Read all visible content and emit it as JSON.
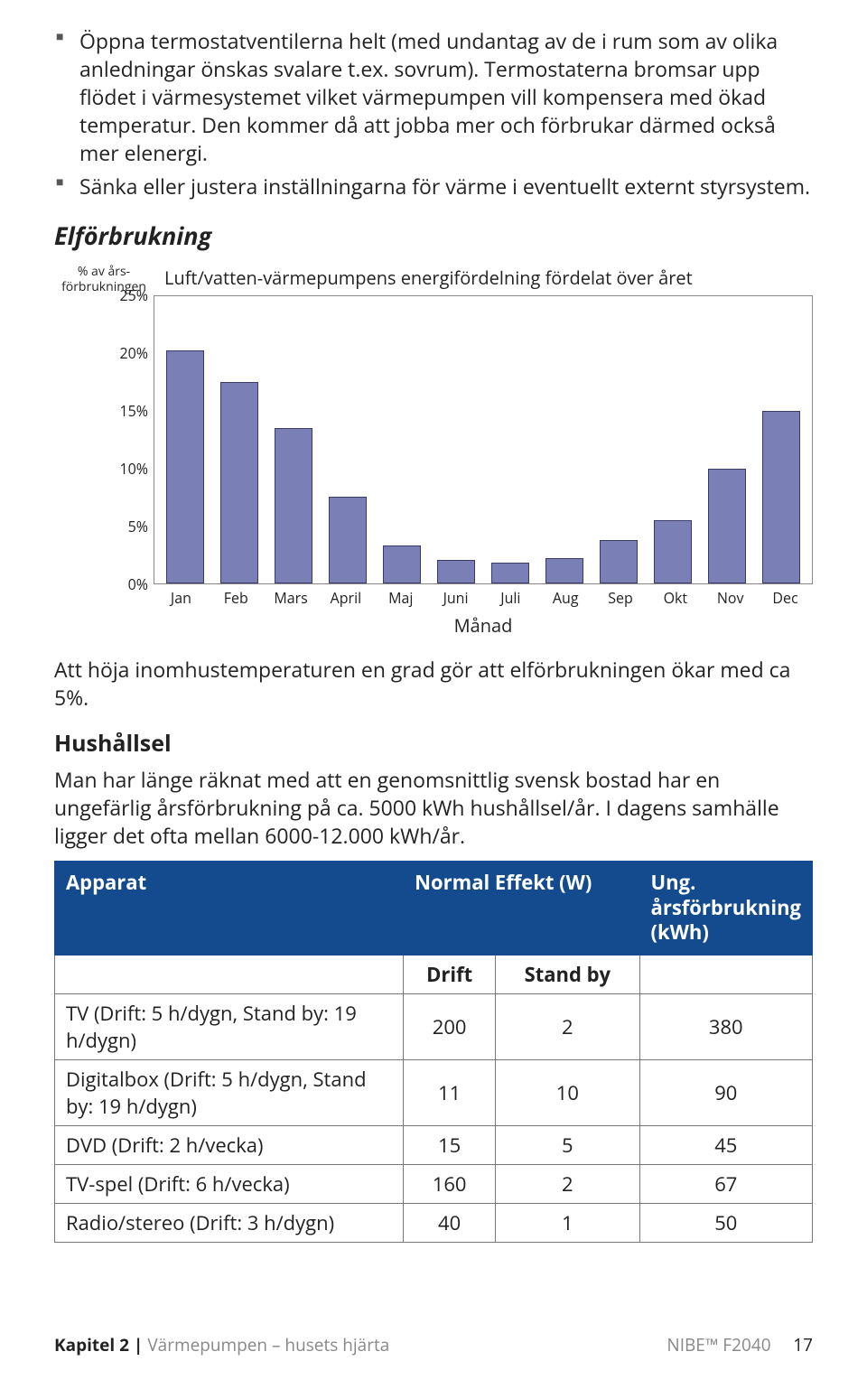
{
  "bullets": [
    "Öppna termostatventilerna helt (med undantag av de i rum som av olika anledningar önskas svalare t.ex. sovrum). Termostaterna bromsar upp flödet i värmesystemet vilket värmepumpen vill kompensera med ökad temperatur. Den kommer då att jobba mer och förbrukar därmed också mer elenergi.",
    "Sänka eller justera inställningarna för värme i eventuellt externt styrsystem."
  ],
  "section_title": "Elförbrukning",
  "chart": {
    "type": "bar",
    "y_axis_label": "% av års-\nförbrukningen",
    "title": "Luft/vatten-värmepumpens energifördelning fördelat över året",
    "categories": [
      "Jan",
      "Feb",
      "Mars",
      "April",
      "Maj",
      "Juni",
      "Juli",
      "Aug",
      "Sep",
      "Okt",
      "Nov",
      "Dec"
    ],
    "values": [
      20.3,
      17.5,
      13.5,
      7.5,
      3.3,
      2.0,
      1.8,
      2.2,
      3.8,
      5.5,
      10.0,
      15.0
    ],
    "ylim": [
      0,
      25
    ],
    "yticks": [
      "25%",
      "20%",
      "15%",
      "10%",
      "5%",
      "0%"
    ],
    "ytick_values": [
      25,
      20,
      15,
      10,
      5,
      0
    ],
    "bar_color": "#7a7fb5",
    "bar_border": "#3a3a6a",
    "x_label": "Månad",
    "plot_border_color": "#888888",
    "background_color": "#ffffff"
  },
  "para_after_chart": "Att höja inomhustemperaturen en grad gör att elförbrukningen ökar med ca 5%.",
  "subsection_title": "Hushållsel",
  "para_hushall": "Man har länge räknat med att en genomsnittlig svensk bostad har en ungefärlig årsförbrukning på ca. 5000 kWh hushållsel/år. I dagens samhälle ligger det ofta mellan 6000-12.000 kWh/år.",
  "table": {
    "header_bg": "#134b8e",
    "header_fg": "#ffffff",
    "cols": {
      "c1": "Apparat",
      "c2": "Normal Effekt (W)",
      "c3": "Ung. årsförbrukning (kWh)"
    },
    "subcols": {
      "drift": "Drift",
      "standby": "Stand by"
    },
    "rows": [
      {
        "name": "TV (Drift: 5 h/dygn, Stand by: 19 h/dygn)",
        "drift": "200",
        "standby": "2",
        "annual": "380"
      },
      {
        "name": "Digitalbox (Drift: 5 h/dygn, Stand by: 19 h/dygn)",
        "drift": "11",
        "standby": "10",
        "annual": "90"
      },
      {
        "name": "DVD (Drift: 2 h/vecka)",
        "drift": "15",
        "standby": "5",
        "annual": "45"
      },
      {
        "name": "TV-spel (Drift: 6 h/vecka)",
        "drift": "160",
        "standby": "2",
        "annual": "67"
      },
      {
        "name": "Radio/stereo (Drift: 3 h/dygn)",
        "drift": "40",
        "standby": "1",
        "annual": "50"
      }
    ]
  },
  "footer": {
    "chapter_bold": "Kapitel 2 |",
    "chapter_grey": " Värmepumpen – husets hjärta",
    "product": "NIBE™ F2040",
    "page": "17"
  }
}
